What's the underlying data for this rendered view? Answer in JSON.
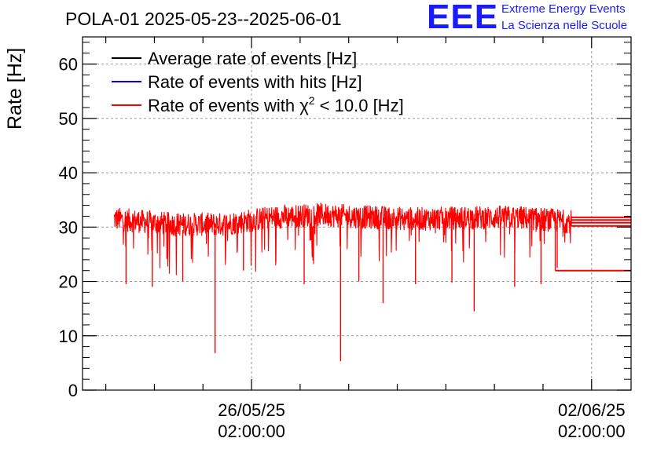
{
  "chart_data": {
    "type": "line",
    "title": "POLA-01 2025-05-23--2025-06-01",
    "ylabel": "Rate [Hz]",
    "xlabel": "",
    "ylim": [
      0,
      65
    ],
    "yticks": [
      0,
      10,
      20,
      30,
      40,
      50,
      60
    ],
    "x_range_days": [
      "2025-05-22 14:30",
      "2025-06-02 21:30"
    ],
    "xticks": [
      {
        "date": "26/05/25",
        "time": "02:00:00",
        "at": "2025-05-26 02:00"
      },
      {
        "date": "02/06/25",
        "time": "02:00:00",
        "at": "2025-06-02 02:00"
      }
    ],
    "grid": true,
    "legend_position": "top-left",
    "legend": [
      {
        "label_main": "Average rate of events [Hz]",
        "color": "#000000"
      },
      {
        "label_main": "Rate of events with hits [Hz]",
        "color": "#0000ee"
      },
      {
        "label_main": "Rate of events with χ",
        "label_sup": "2",
        "label_tail": " < 10.0 [Hz]",
        "color": "#ff0000"
      }
    ],
    "series": [
      {
        "name": "Rate of events with χ2 < 10.0 [Hz]",
        "color": "#ff0000",
        "x_start": "2025-05-23 06:00",
        "x_end": "2025-06-01 16:00",
        "baseline": [
          {
            "x": "2025-05-23 06:00",
            "y": 31.5
          },
          {
            "x": "2025-05-24 12:00",
            "y": 30.5
          },
          {
            "x": "2025-05-25 12:00",
            "y": 30.5
          },
          {
            "x": "2025-05-26 12:00",
            "y": 31.8
          },
          {
            "x": "2025-05-27 12:00",
            "y": 32.3
          },
          {
            "x": "2025-05-28 12:00",
            "y": 31.8
          },
          {
            "x": "2025-05-29 12:00",
            "y": 31.5
          },
          {
            "x": "2025-05-30 12:00",
            "y": 31.7
          },
          {
            "x": "2025-05-31 12:00",
            "y": 31.8
          },
          {
            "x": "2025-06-01 16:00",
            "y": 31.0
          }
        ],
        "noise_band": 2.2,
        "dips": [
          {
            "x": "2025-05-23 12:00",
            "y": 19.5
          },
          {
            "x": "2025-05-24 01:00",
            "y": 19.0
          },
          {
            "x": "2025-05-24 16:00",
            "y": 20.0
          },
          {
            "x": "2025-05-25 08:00",
            "y": 6.8
          },
          {
            "x": "2025-05-25 22:00",
            "y": 22.0
          },
          {
            "x": "2025-05-27 04:00",
            "y": 19.5
          },
          {
            "x": "2025-05-27 22:00",
            "y": 5.3
          },
          {
            "x": "2025-05-28 07:00",
            "y": 20.0
          },
          {
            "x": "2025-05-28 19:00",
            "y": 16.0
          },
          {
            "x": "2025-05-29 11:00",
            "y": 19.5
          },
          {
            "x": "2025-05-30 05:00",
            "y": 19.8
          },
          {
            "x": "2025-05-30 16:00",
            "y": 14.5
          },
          {
            "x": "2025-05-31 12:00",
            "y": 19.0
          },
          {
            "x": "2025-06-01 01:00",
            "y": 19.5
          },
          {
            "x": "2025-06-01 09:00",
            "y": 22.5
          }
        ],
        "tail_segments": [
          {
            "x_from": "2025-06-01 08:00",
            "x_to": "2025-06-02 21:30",
            "y": 22.0
          },
          {
            "x_from": "2025-06-01 16:00",
            "x_to": "2025-06-02 21:30",
            "y": 30.2
          },
          {
            "x_from": "2025-06-01 16:00",
            "x_to": "2025-06-02 21:30",
            "y": 30.8
          },
          {
            "x_from": "2025-06-01 16:00",
            "x_to": "2025-06-02 21:30",
            "y": 31.3
          },
          {
            "x_from": "2025-06-01 16:00",
            "x_to": "2025-06-02 21:30",
            "y": 31.8
          }
        ]
      }
    ]
  },
  "logo": {
    "mark": "EEE",
    "line1": "Extreme Energy Events",
    "line2": "La Scienza nelle Scuole",
    "color": "#1a1aff"
  }
}
